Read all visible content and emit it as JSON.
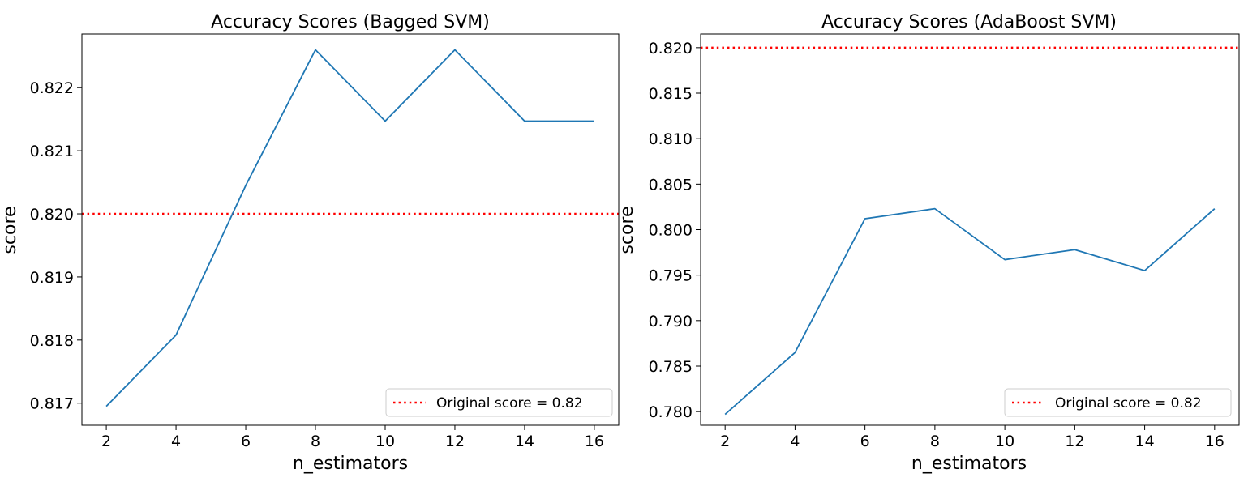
{
  "chart_data": [
    {
      "type": "line",
      "title": "Accuracy Scores (Bagged SVM)",
      "xlabel": "n_estimators",
      "ylabel": "score",
      "xlim": [
        1.3,
        16.7
      ],
      "ylim": [
        0.81665,
        0.82285
      ],
      "xticks": [
        2,
        4,
        6,
        8,
        10,
        12,
        14,
        16
      ],
      "xtick_labels": [
        "2",
        "4",
        "6",
        "8",
        "10",
        "12",
        "14",
        "16"
      ],
      "yticks": [
        0.817,
        0.818,
        0.819,
        0.82,
        0.821,
        0.822
      ],
      "ytick_labels": [
        "0.817",
        "0.818",
        "0.819",
        "0.820",
        "0.821",
        "0.822"
      ],
      "grid": false,
      "legend_position": "lower-right",
      "series": [
        {
          "x": [
            2,
            4,
            6,
            8,
            10,
            12,
            14,
            16
          ],
          "y": [
            0.81695,
            0.81808,
            0.82045,
            0.8226,
            0.82147,
            0.8226,
            0.82147,
            0.82147
          ],
          "color": "#1f77b4",
          "style": "solid"
        }
      ],
      "hlines": [
        {
          "y": 0.82,
          "label": "Original score = 0.82",
          "color": "#ff0000",
          "style": "dotted"
        }
      ]
    },
    {
      "type": "line",
      "title": "Accuracy Scores (AdaBoost SVM)",
      "xlabel": "n_estimators",
      "ylabel": "score",
      "xlim": [
        1.3,
        16.7
      ],
      "ylim": [
        0.7785,
        0.8215
      ],
      "xticks": [
        2,
        4,
        6,
        8,
        10,
        12,
        14,
        16
      ],
      "xtick_labels": [
        "2",
        "4",
        "6",
        "8",
        "10",
        "12",
        "14",
        "16"
      ],
      "yticks": [
        0.78,
        0.785,
        0.79,
        0.795,
        0.8,
        0.805,
        0.81,
        0.815,
        0.82
      ],
      "ytick_labels": [
        "0.780",
        "0.785",
        "0.790",
        "0.795",
        "0.800",
        "0.805",
        "0.810",
        "0.815",
        "0.820"
      ],
      "grid": false,
      "legend_position": "lower-right",
      "series": [
        {
          "x": [
            2,
            4,
            6,
            8,
            10,
            12,
            14,
            16
          ],
          "y": [
            0.7797,
            0.7865,
            0.8012,
            0.8023,
            0.7967,
            0.7978,
            0.7955,
            0.8023
          ],
          "color": "#1f77b4",
          "style": "solid"
        }
      ],
      "hlines": [
        {
          "y": 0.82,
          "label": "Original score = 0.82",
          "color": "#ff0000",
          "style": "dotted"
        }
      ]
    }
  ]
}
